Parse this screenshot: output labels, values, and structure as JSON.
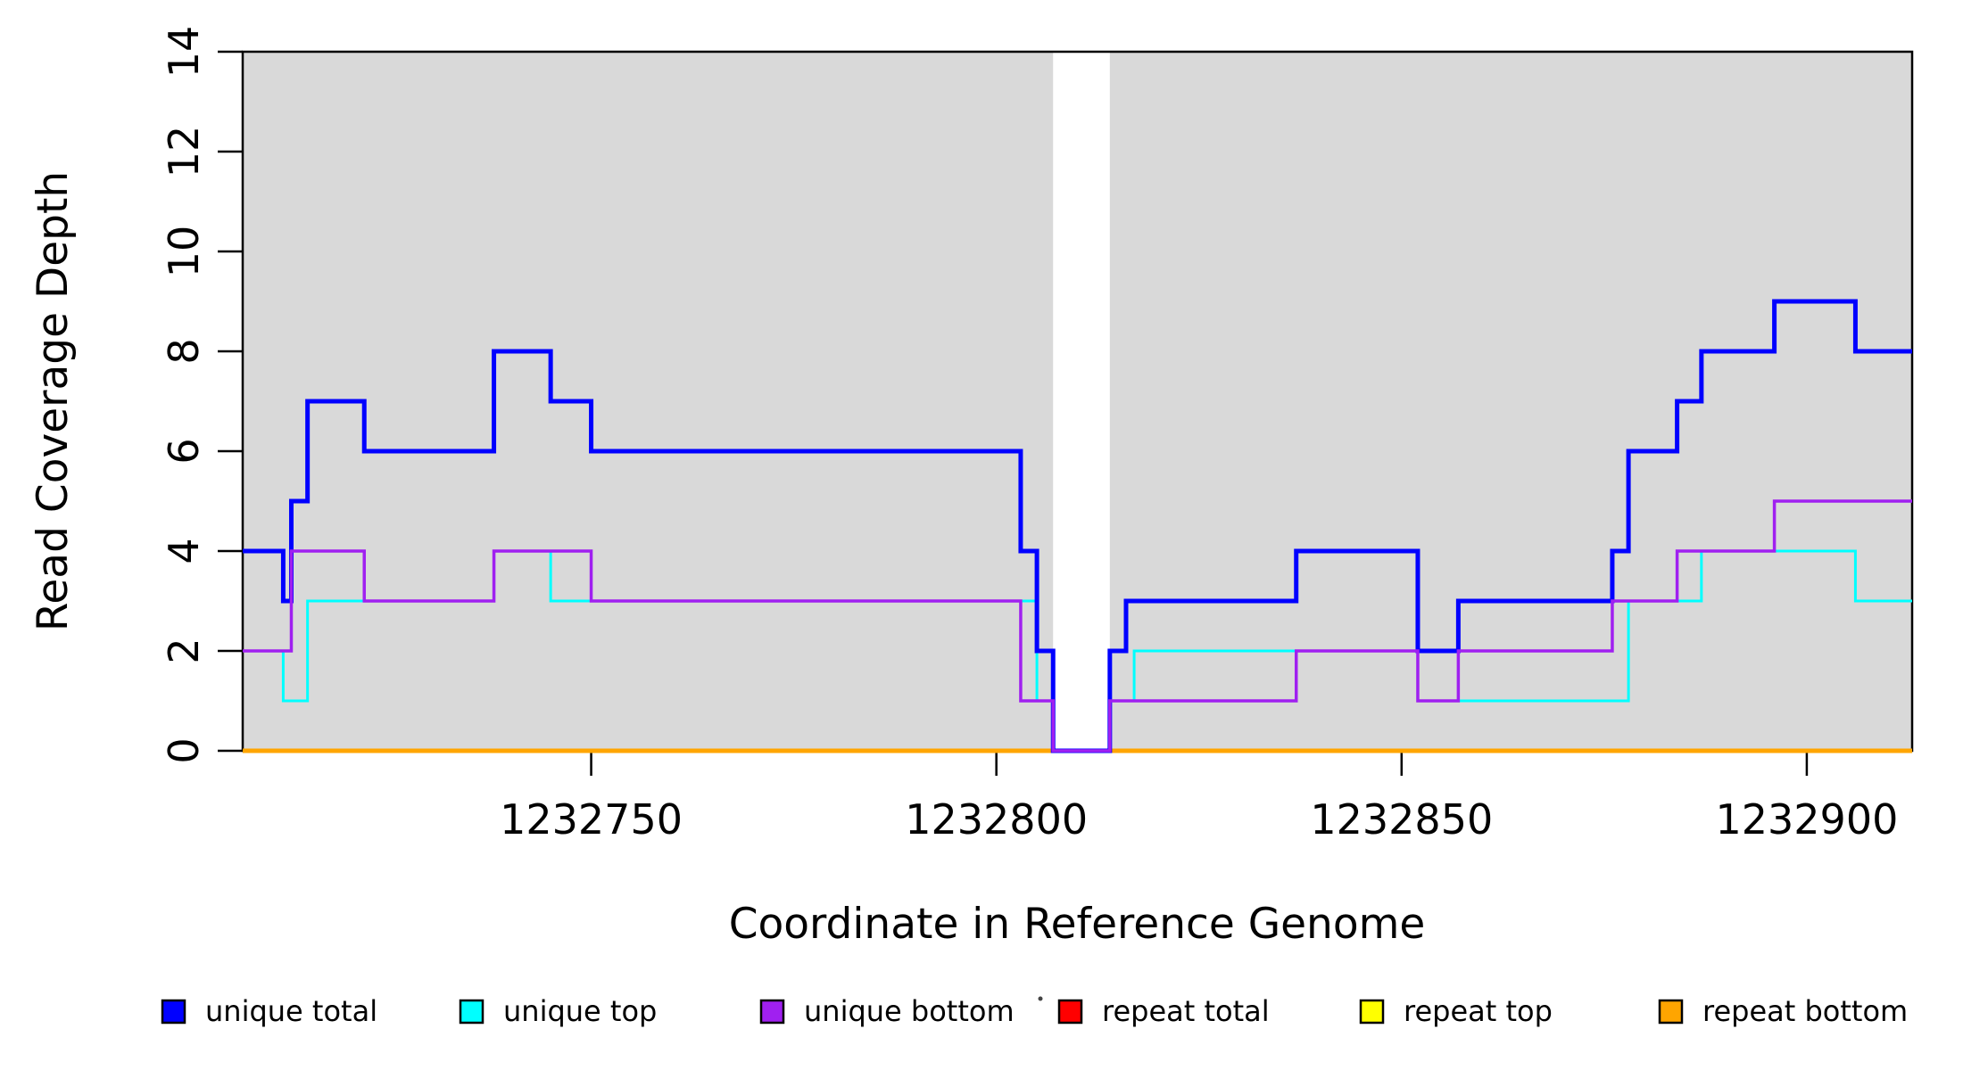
{
  "chart_data": {
    "type": "line",
    "subtype": "step",
    "title": "",
    "xlabel": "Coordinate in Reference Genome",
    "ylabel": "Read Coverage Depth",
    "xlim": [
      1232707,
      1232913
    ],
    "ylim": [
      0,
      14
    ],
    "x_ticks": [
      1232750,
      1232800,
      1232850,
      1232900
    ],
    "y_ticks": [
      0,
      2,
      4,
      6,
      8,
      10,
      12,
      14
    ],
    "grid": false,
    "plot_bg_color": "#d9d9d9",
    "masked_region": {
      "start": 1232807,
      "end": 1232814,
      "color": "#ffffff"
    },
    "series": [
      {
        "name": "repeat total",
        "color": "#ff0000",
        "width": 4,
        "points": [
          [
            1232707,
            0
          ]
        ]
      },
      {
        "name": "repeat top",
        "color": "#ffff00",
        "width": 4,
        "points": [
          [
            1232707,
            0
          ]
        ]
      },
      {
        "name": "repeat bottom",
        "color": "#ffa500",
        "width": 5,
        "points": [
          [
            1232707,
            0
          ]
        ]
      },
      {
        "name": "unique top",
        "color": "#00ffff",
        "width": 3,
        "points": [
          [
            1232707,
            2
          ],
          [
            1232712,
            1
          ],
          [
            1232715,
            3
          ],
          [
            1232738,
            4
          ],
          [
            1232745,
            3
          ],
          [
            1232805,
            1
          ],
          [
            1232807,
            0
          ],
          [
            1232814,
            1
          ],
          [
            1232817,
            2
          ],
          [
            1232852,
            1
          ],
          [
            1232878,
            3
          ],
          [
            1232887,
            4
          ],
          [
            1232906,
            3
          ]
        ]
      },
      {
        "name": "unique total",
        "color": "#0000ff",
        "width": 5,
        "points": [
          [
            1232707,
            4
          ],
          [
            1232712,
            3
          ],
          [
            1232713,
            5
          ],
          [
            1232715,
            7
          ],
          [
            1232722,
            6
          ],
          [
            1232738,
            8
          ],
          [
            1232745,
            7
          ],
          [
            1232750,
            6
          ],
          [
            1232803,
            4
          ],
          [
            1232805,
            2
          ],
          [
            1232807,
            0
          ],
          [
            1232814,
            2
          ],
          [
            1232816,
            3
          ],
          [
            1232837,
            4
          ],
          [
            1232852,
            2
          ],
          [
            1232857,
            3
          ],
          [
            1232876,
            4
          ],
          [
            1232878,
            6
          ],
          [
            1232884,
            7
          ],
          [
            1232887,
            8
          ],
          [
            1232896,
            9
          ],
          [
            1232906,
            8
          ]
        ]
      },
      {
        "name": "unique bottom",
        "color": "#a020f0",
        "width": 3.5,
        "points": [
          [
            1232707,
            2
          ],
          [
            1232713,
            4
          ],
          [
            1232722,
            3
          ],
          [
            1232738,
            4
          ],
          [
            1232750,
            3
          ],
          [
            1232803,
            1
          ],
          [
            1232807,
            0
          ],
          [
            1232814,
            1
          ],
          [
            1232837,
            2
          ],
          [
            1232852,
            1
          ],
          [
            1232857,
            2
          ],
          [
            1232876,
            3
          ],
          [
            1232884,
            4
          ],
          [
            1232896,
            5
          ]
        ]
      }
    ],
    "legend": {
      "position": "bottom",
      "entries": [
        {
          "label": "unique total",
          "color": "#0000ff"
        },
        {
          "label": "unique top",
          "color": "#00ffff"
        },
        {
          "label": "unique bottom",
          "color": "#a020f0"
        },
        {
          "label": "repeat total",
          "color": "#ff0000"
        },
        {
          "label": "repeat top",
          "color": "#ffff00"
        },
        {
          "label": "repeat bottom",
          "color": "#ffa500"
        }
      ]
    },
    "artifact_dot": {
      "x": 1166,
      "y": 1120
    }
  }
}
